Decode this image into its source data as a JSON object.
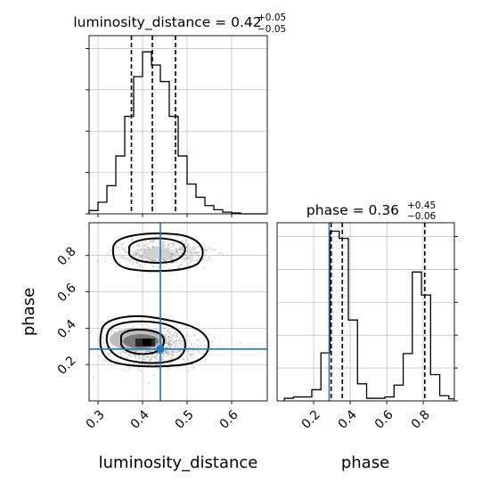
{
  "chart_data": {
    "type": "corner",
    "parameters": [
      "luminosity_distance",
      "phase"
    ],
    "truth": {
      "luminosity_distance": 0.44,
      "phase": 0.285,
      "color": "#1f77b4"
    },
    "panels": {
      "luminosity_distance_hist": {
        "title_main": "luminosity_distance = 0.42",
        "title_plus": "+0.05",
        "title_minus": "−0.05",
        "xlim": [
          0.28,
          0.68
        ],
        "bin_edges": [
          0.28,
          0.3,
          0.32,
          0.34,
          0.36,
          0.38,
          0.4,
          0.42,
          0.44,
          0.46,
          0.48,
          0.5,
          0.52,
          0.54,
          0.56,
          0.58,
          0.6,
          0.62,
          0.64,
          0.66,
          0.68
        ],
        "counts": [
          4,
          14,
          34,
          70,
          118,
          166,
          196,
          180,
          160,
          118,
          70,
          36,
          20,
          10,
          5,
          2,
          1,
          0,
          0,
          0
        ],
        "quantiles": [
          0.375,
          0.422,
          0.474
        ],
        "grid": true,
        "xticks": [
          0.3,
          0.4,
          0.5,
          0.6
        ],
        "yticks": [
          0,
          50,
          100,
          150,
          200
        ]
      },
      "phase_hist": {
        "title_main": "phase = 0.36",
        "title_plus": "+0.45",
        "title_minus": "−0.06",
        "xlim": [
          0.0,
          0.97
        ],
        "bin_edges": [
          0.04,
          0.09,
          0.14,
          0.19,
          0.24,
          0.29,
          0.34,
          0.39,
          0.44,
          0.49,
          0.54,
          0.59,
          0.64,
          0.69,
          0.74,
          0.79,
          0.84,
          0.89,
          0.94,
          0.97
        ],
        "counts": [
          4,
          6,
          6,
          17,
          73,
          258,
          247,
          123,
          26,
          4,
          4,
          6,
          24,
          72,
          196,
          161,
          40,
          8,
          3
        ],
        "quantiles": [
          0.296,
          0.357,
          0.808
        ],
        "grid": true,
        "xticks": [
          0.2,
          0.4,
          0.6,
          0.8
        ],
        "xtick_labels": [
          "0.2",
          "0.4",
          "0.6",
          "0.8"
        ],
        "yticks": [
          0,
          50,
          100,
          150,
          200,
          250
        ]
      },
      "joint": {
        "xlim": [
          0.28,
          0.68
        ],
        "ylim": [
          0.0,
          0.98
        ],
        "xticks": [
          0.3,
          0.4,
          0.5,
          0.6
        ],
        "xtick_labels": [
          "0.3",
          "0.4",
          "0.5",
          "0.6"
        ],
        "yticks": [
          0.2,
          0.4,
          0.6,
          0.8
        ],
        "ytick_labels": [
          "0.2",
          "0.4",
          "0.6",
          "0.8"
        ],
        "grid": true,
        "modes": [
          {
            "x_mean": 0.425,
            "x_sd": 0.05,
            "y_mean": 0.3,
            "y_sd": 0.05,
            "weight": 0.6
          },
          {
            "x_mean": 0.445,
            "x_sd": 0.05,
            "y_mean": 0.81,
            "y_sd": 0.035,
            "weight": 0.4
          }
        ]
      }
    },
    "xlabels": [
      "luminosity_distance",
      "phase"
    ],
    "ylabels": [
      "phase"
    ]
  }
}
